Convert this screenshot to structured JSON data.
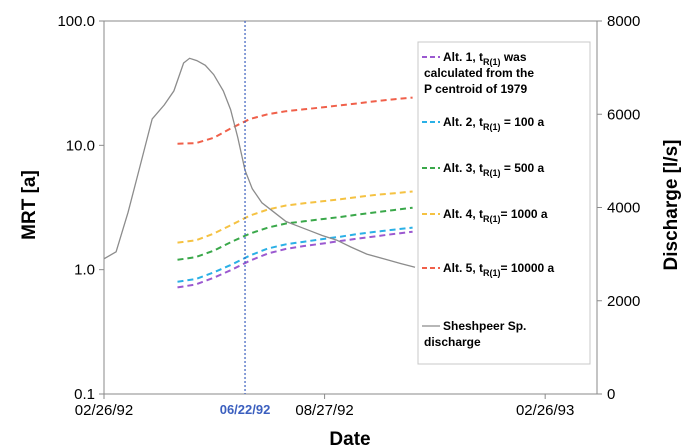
{
  "chart_data": {
    "type": "line",
    "xlabel": "Date",
    "ylabel": "MRT [a]",
    "y2label": "Discharge [l/s]",
    "y_scale": "log",
    "ylim": [
      0.1,
      100
    ],
    "y2lim": [
      0,
      8000
    ],
    "xlim": [
      "1992-02-26",
      "1993-04-10"
    ],
    "x_tick_labels": [
      "02/26/92",
      "08/27/92",
      "02/26/93"
    ],
    "x_tick_values": [
      "1992-02-26",
      "1992-08-27",
      "1993-02-26"
    ],
    "y_tick_labels": [
      "0.1",
      "1.0",
      "10.0",
      "100.0"
    ],
    "y_tick_values": [
      0.1,
      1,
      10,
      100
    ],
    "y2_tick_labels": [
      "0",
      "2000",
      "4000",
      "6000",
      "8000"
    ],
    "y2_tick_values": [
      0,
      2000,
      4000,
      6000,
      8000
    ],
    "marker": {
      "date": "1992-06-22",
      "label": "06/22/92",
      "color": "#3b5fbf"
    },
    "legend_position": "right",
    "series": [
      {
        "name": "Alt. 1, t_R(1) was calculated from the P centroid of 1979",
        "legend_lines": [
          "Alt. 1, t",
          " was",
          "calculated from the",
          "P centroid of 1979"
        ],
        "legend_sub": "R(1)",
        "axis": "left",
        "style": "dashed",
        "color": "#9b59d0",
        "x": [
          "1992-04-27",
          "1992-05-12",
          "1992-05-27",
          "1992-06-11",
          "1992-06-26",
          "1992-07-11",
          "1992-07-26",
          "1992-08-10",
          "1992-08-25",
          "1992-09-09",
          "1992-09-24",
          "1992-10-09",
          "1992-10-24",
          "1992-11-08"
        ],
        "y": [
          0.72,
          0.76,
          0.86,
          1.0,
          1.18,
          1.35,
          1.47,
          1.55,
          1.62,
          1.7,
          1.78,
          1.86,
          1.94,
          2.02
        ]
      },
      {
        "name": "Alt. 2, t_R(1) = 100 a",
        "legend_lines": [
          "Alt. 2, t",
          " = 100 a"
        ],
        "legend_sub": "R(1)",
        "axis": "left",
        "style": "dashed",
        "color": "#2ab0e6",
        "x": [
          "1992-04-27",
          "1992-05-12",
          "1992-05-27",
          "1992-06-11",
          "1992-06-26",
          "1992-07-11",
          "1992-07-26",
          "1992-08-10",
          "1992-08-25",
          "1992-09-09",
          "1992-09-24",
          "1992-10-09",
          "1992-10-24",
          "1992-11-08"
        ],
        "y": [
          0.8,
          0.84,
          0.95,
          1.1,
          1.3,
          1.48,
          1.6,
          1.68,
          1.76,
          1.84,
          1.94,
          2.02,
          2.1,
          2.18
        ]
      },
      {
        "name": "Alt. 3, t_R(1) = 500 a",
        "legend_lines": [
          "Alt. 3, t",
          " = 500 a"
        ],
        "legend_sub": "R(1)",
        "axis": "left",
        "style": "dashed",
        "color": "#3aa84a",
        "x": [
          "1992-04-27",
          "1992-05-12",
          "1992-05-27",
          "1992-06-11",
          "1992-06-26",
          "1992-07-11",
          "1992-07-26",
          "1992-08-10",
          "1992-08-25",
          "1992-09-09",
          "1992-09-24",
          "1992-10-09",
          "1992-10-24",
          "1992-11-08"
        ],
        "y": [
          1.2,
          1.26,
          1.42,
          1.68,
          1.95,
          2.18,
          2.35,
          2.45,
          2.55,
          2.65,
          2.78,
          2.9,
          3.02,
          3.15
        ]
      },
      {
        "name": "Alt. 4, t_R(1) = 1000 a",
        "legend_lines": [
          "Alt. 4, t",
          "= 1000 a"
        ],
        "legend_sub": "R(1)",
        "axis": "left",
        "style": "dashed",
        "color": "#f5c242",
        "x": [
          "1992-04-27",
          "1992-05-12",
          "1992-05-27",
          "1992-06-11",
          "1992-06-26",
          "1992-07-11",
          "1992-07-26",
          "1992-08-10",
          "1992-08-25",
          "1992-09-09",
          "1992-09-24",
          "1992-10-09",
          "1992-10-24",
          "1992-11-08"
        ],
        "y": [
          1.65,
          1.72,
          1.95,
          2.3,
          2.72,
          3.05,
          3.28,
          3.42,
          3.55,
          3.68,
          3.85,
          4.0,
          4.12,
          4.25
        ]
      },
      {
        "name": "Alt. 5, t_R(1) = 10000 a",
        "legend_lines": [
          "Alt. 5, t",
          "= 10000 a"
        ],
        "legend_sub": "R(1)",
        "axis": "left",
        "style": "dashed",
        "color": "#f0604a",
        "x": [
          "1992-04-27",
          "1992-05-12",
          "1992-05-27",
          "1992-06-11",
          "1992-06-26",
          "1992-07-11",
          "1992-07-26",
          "1992-08-10",
          "1992-08-25",
          "1992-09-09",
          "1992-09-24",
          "1992-10-09",
          "1992-10-24",
          "1992-11-08"
        ],
        "y": [
          10.3,
          10.4,
          11.5,
          13.8,
          16.3,
          17.8,
          18.8,
          19.5,
          20.2,
          21.0,
          21.8,
          22.7,
          23.5,
          24.2
        ]
      },
      {
        "name": "Sheshpeer Sp. discharge",
        "legend_lines": [
          "Sheshpeer Sp.",
          "discharge"
        ],
        "axis": "right",
        "style": "solid",
        "color": "#8c8c8c",
        "x": [
          "1992-02-26",
          "1992-03-07",
          "1992-03-17",
          "1992-03-27",
          "1992-04-06",
          "1992-04-16",
          "1992-04-24",
          "1992-05-02",
          "1992-05-07",
          "1992-05-13",
          "1992-05-20",
          "1992-05-27",
          "1992-06-04",
          "1992-06-10",
          "1992-06-16",
          "1992-06-22",
          "1992-06-28",
          "1992-07-06",
          "1992-07-16",
          "1992-07-26",
          "1992-08-05",
          "1992-08-15",
          "1992-08-25",
          "1992-09-06",
          "1992-09-18",
          "1992-10-01",
          "1992-10-15",
          "1992-10-29",
          "1992-11-10"
        ],
        "y": [
          2900,
          3050,
          3900,
          4900,
          5900,
          6200,
          6500,
          7100,
          7200,
          7150,
          7050,
          6850,
          6500,
          6100,
          5500,
          4800,
          4400,
          4100,
          3900,
          3700,
          3600,
          3500,
          3400,
          3300,
          3150,
          3000,
          2900,
          2800,
          2720
        ]
      }
    ]
  }
}
